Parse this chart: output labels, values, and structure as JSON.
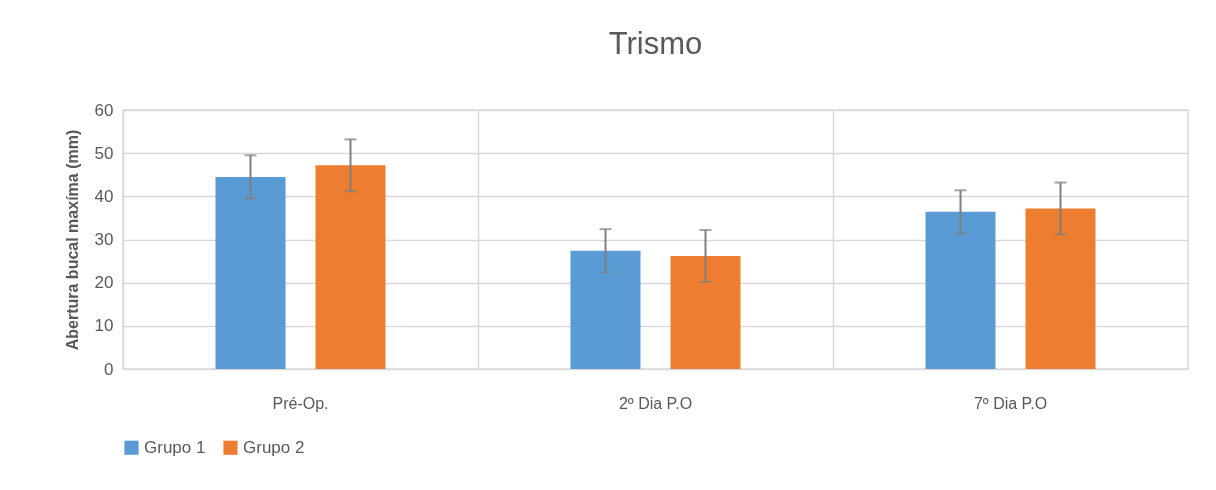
{
  "chart_data": {
    "type": "bar",
    "title": "Trismo",
    "ylabel": "Abertura bucal maxíma (mm)",
    "categories": [
      "Pré-Op.",
      "2º Dia P.O",
      "7º Dia P.O"
    ],
    "series": [
      {
        "name": "Grupo 1",
        "color": "#5b9bd5",
        "values": [
          44.5,
          27.4,
          36.4
        ],
        "errors": [
          5,
          5,
          5
        ]
      },
      {
        "name": "Grupo 2",
        "color": "#ed7d31",
        "values": [
          47.2,
          26.2,
          37.2
        ],
        "errors": [
          6,
          6,
          6
        ]
      }
    ],
    "ylim": [
      0,
      60
    ],
    "yticks": [
      0,
      10,
      20,
      30,
      40,
      50,
      60
    ],
    "grid": true,
    "legend": "bottom"
  }
}
